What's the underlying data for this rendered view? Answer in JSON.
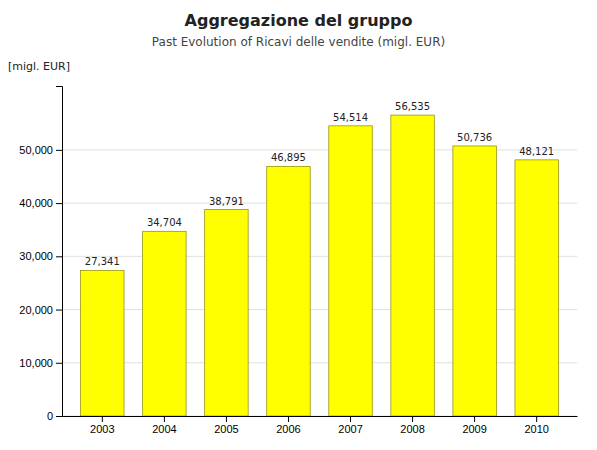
{
  "chart_data": {
    "type": "bar",
    "title": "Aggregazione del gruppo",
    "subtitle": "Past Evolution of Ricavi delle vendite (migl. EUR)",
    "ylabel": "[migl. EUR]",
    "categories": [
      "2003",
      "2004",
      "2005",
      "2006",
      "2007",
      "2008",
      "2009",
      "2010"
    ],
    "values": [
      27341,
      34704,
      38791,
      46895,
      54514,
      56535,
      50736,
      48121
    ],
    "value_labels": [
      "27,341",
      "34,704",
      "38,791",
      "46,895",
      "54,514",
      "56,535",
      "50,736",
      "48,121"
    ],
    "data_labels": true,
    "color": "#FFFF00",
    "ylim": [
      0,
      62000
    ],
    "yticks": [
      0,
      {
        "value": 10000,
        "label": "10,000"
      },
      {
        "value": 20000,
        "label": "20,000"
      },
      {
        "value": 30000,
        "label": "30,000"
      },
      {
        "value": 40000,
        "label": "40,000"
      },
      {
        "value": 50000,
        "label": "50,000"
      }
    ],
    "grid": true
  }
}
